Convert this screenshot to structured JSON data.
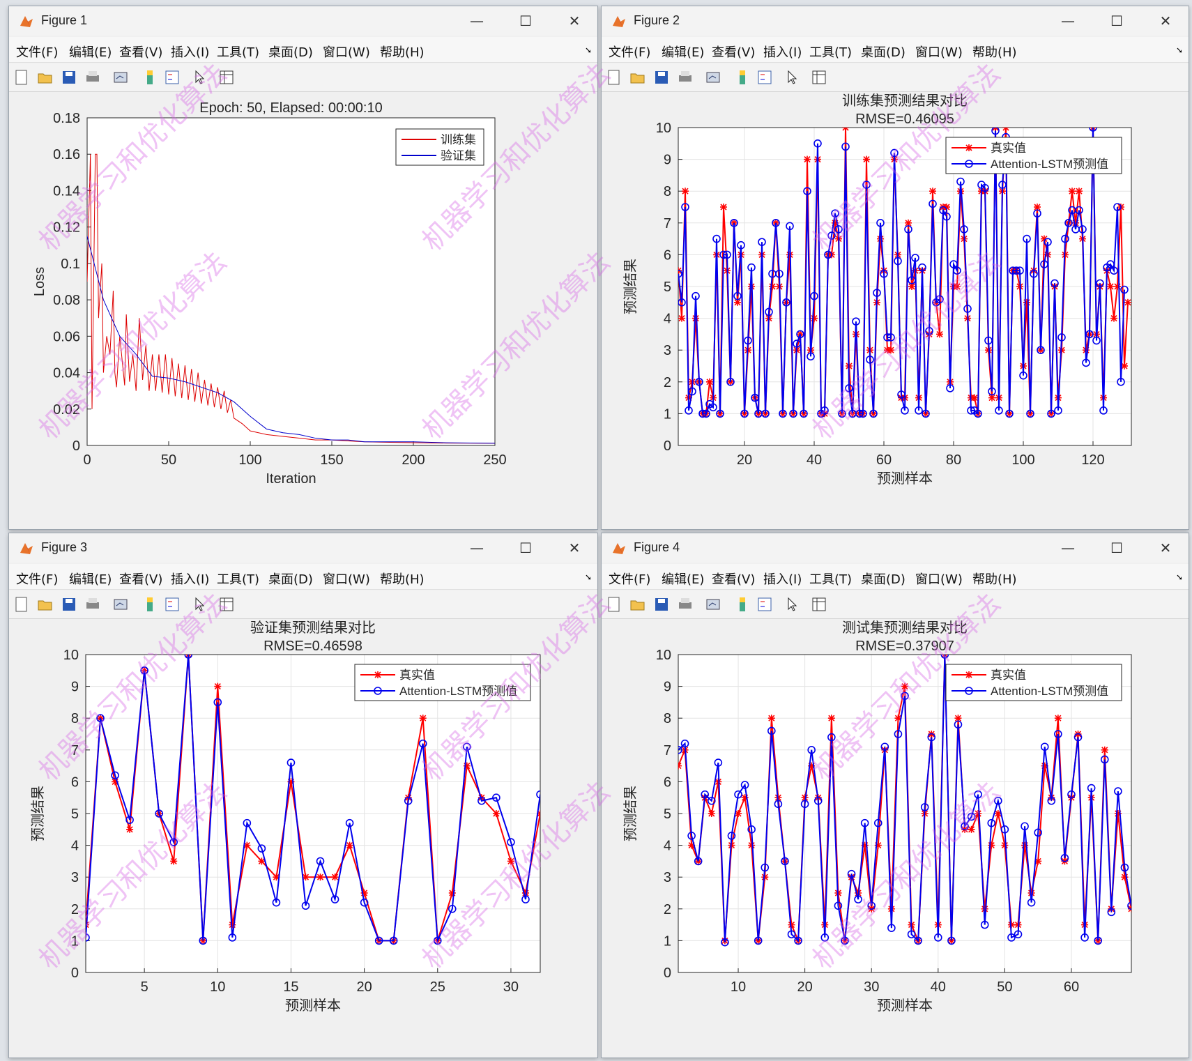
{
  "menu": [
    "文件(F)",
    "编辑(E)",
    "查看(V)",
    "插入(I)",
    "工具(T)",
    "桌面(D)",
    "窗口(W)",
    "帮助(H)"
  ],
  "toolbar_icons": [
    "new-figure-icon",
    "open-file-icon",
    "save-icon",
    "print-icon",
    "link-plot-icon",
    "colorbar-icon",
    "legend-icon",
    "edit-plot-icon",
    "property-inspector-icon"
  ],
  "windows": [
    {
      "title": "Figure 1"
    },
    {
      "title": "Figure 2"
    },
    {
      "title": "Figure 3"
    },
    {
      "title": "Figure 4"
    }
  ],
  "colors": {
    "red": "#ff0000",
    "blue": "#0000ff",
    "grid": "#e3e3e3"
  },
  "watermark": "机器学习和优化算法",
  "chart_data": [
    {
      "type": "line",
      "title": "Epoch: 50, Elapsed: 00:00:10",
      "xlabel": "Iteration",
      "ylabel": "Loss",
      "xlim": [
        0,
        250
      ],
      "ylim": [
        0,
        0.18
      ],
      "xticks": [
        0,
        50,
        100,
        150,
        200,
        250
      ],
      "yticks": [
        0,
        0.02,
        0.04,
        0.06,
        0.08,
        0.1,
        0.12,
        0.14,
        0.16,
        0.18
      ],
      "grid": false,
      "legend": "top-right",
      "series": [
        {
          "name": "训练集",
          "color": "#dd0000",
          "x": [
            0,
            2,
            3,
            5,
            6,
            7,
            9,
            10,
            12,
            14,
            16,
            17,
            18,
            20,
            22,
            23,
            24,
            26,
            28,
            30,
            32,
            34,
            36,
            38,
            40,
            42,
            44,
            46,
            48,
            50,
            52,
            54,
            56,
            58,
            60,
            62,
            64,
            66,
            68,
            70,
            72,
            74,
            76,
            78,
            80,
            82,
            84,
            86,
            88,
            90,
            95,
            100,
            110,
            120,
            130,
            140,
            150,
            160,
            170,
            180,
            200,
            220,
            250
          ],
          "y": [
            0.09,
            0.16,
            0.02,
            0.16,
            0.16,
            0.07,
            0.1,
            0.04,
            0.06,
            0.05,
            0.085,
            0.04,
            0.032,
            0.06,
            0.042,
            0.033,
            0.072,
            0.035,
            0.05,
            0.03,
            0.07,
            0.036,
            0.055,
            0.03,
            0.05,
            0.03,
            0.05,
            0.029,
            0.05,
            0.028,
            0.048,
            0.027,
            0.045,
            0.026,
            0.044,
            0.025,
            0.042,
            0.024,
            0.04,
            0.023,
            0.036,
            0.022,
            0.034,
            0.021,
            0.032,
            0.02,
            0.03,
            0.018,
            0.025,
            0.015,
            0.012,
            0.008,
            0.006,
            0.005,
            0.004,
            0.003,
            0.003,
            0.0025,
            0.002,
            0.0018,
            0.0015,
            0.0013,
            0.0012
          ]
        },
        {
          "name": "验证集",
          "color": "#0000cc",
          "x": [
            0,
            10,
            20,
            30,
            40,
            50,
            60,
            70,
            80,
            90,
            100,
            110,
            120,
            130,
            140,
            150,
            160,
            170,
            180,
            200,
            220,
            250
          ],
          "y": [
            0.115,
            0.08,
            0.06,
            0.05,
            0.038,
            0.037,
            0.035,
            0.032,
            0.029,
            0.024,
            0.016,
            0.009,
            0.007,
            0.006,
            0.004,
            0.003,
            0.003,
            0.002,
            0.002,
            0.002,
            0.0015,
            0.0012
          ]
        }
      ]
    },
    {
      "type": "line",
      "title": "训练集预测结果对比",
      "subtitle": "RMSE=0.46095",
      "xlabel": "预测样本",
      "ylabel": "预测结果",
      "xlim": [
        1,
        131
      ],
      "ylim": [
        0,
        10
      ],
      "xticks": [
        20,
        40,
        60,
        80,
        100,
        120
      ],
      "yticks": [
        0,
        1,
        2,
        3,
        4,
        5,
        6,
        7,
        8,
        9,
        10
      ],
      "grid": true,
      "legend": "top-right",
      "series": [
        {
          "name": "真实值",
          "color": "#ff0000",
          "marker": "star",
          "values": [
            5.5,
            4,
            8,
            1.5,
            2,
            4,
            2,
            1,
            1,
            2,
            1.5,
            6,
            1,
            7.5,
            5.5,
            2,
            7,
            4.5,
            6,
            1,
            3,
            5,
            1.5,
            1,
            6,
            1,
            4,
            5,
            7,
            5,
            1,
            4.5,
            6,
            1,
            3,
            3.5,
            1,
            9,
            3,
            4,
            9,
            1,
            1,
            6,
            6,
            7,
            6.5,
            1,
            10,
            2.5,
            1,
            3.5,
            1,
            1,
            9,
            3,
            1,
            4.5,
            6.5,
            5.5,
            3,
            3,
            9,
            6,
            1.5,
            1.5,
            7,
            5,
            5.5,
            1.5,
            5.5,
            1,
            3.5,
            8,
            4.5,
            3.5,
            7.5,
            7.5,
            2,
            5,
            5,
            8,
            6.5,
            4,
            1.5,
            1.5,
            1,
            8,
            8,
            3,
            1.5,
            10,
            1.5,
            8,
            10,
            1,
            5.5,
            5.5,
            5,
            2.5,
            4.5,
            1,
            5.5,
            7.5,
            3,
            6.5,
            6,
            1,
            5,
            1.5,
            3,
            6,
            7,
            8,
            7,
            8,
            6.5,
            3,
            3.5,
            10,
            3.5,
            5,
            1.5,
            5.5,
            5,
            4,
            5,
            7.5,
            2.5,
            4.5
          ]
        },
        {
          "name": "Attention-LSTM预测值",
          "color": "#0000ee",
          "marker": "circle",
          "values": [
            5.4,
            4.5,
            7.5,
            1.1,
            1.7,
            4.7,
            2,
            1,
            1,
            1.3,
            1.2,
            6.5,
            1,
            6,
            6,
            2,
            7,
            4.7,
            6.3,
            1,
            3.3,
            5.6,
            1.5,
            1,
            6.4,
            1,
            4.2,
            5.4,
            7,
            5.4,
            1,
            4.5,
            6.9,
            1,
            3.2,
            3.5,
            1,
            8,
            2.8,
            4.7,
            9.5,
            1,
            1.1,
            6,
            6.6,
            7.3,
            6.8,
            1,
            9.4,
            1.8,
            1,
            3.9,
            1,
            1,
            8.2,
            2.7,
            1,
            4.8,
            7,
            5.4,
            3.4,
            3.4,
            9.2,
            5.8,
            1.6,
            1.1,
            6.8,
            5.2,
            5.9,
            1.1,
            5.6,
            1,
            3.6,
            7.6,
            4.5,
            4.6,
            7.4,
            7.2,
            1.8,
            5.7,
            5.5,
            8.3,
            6.8,
            4.3,
            1.1,
            1.1,
            1,
            8.2,
            8.1,
            3.3,
            1.7,
            9.9,
            1.1,
            8.2,
            9.7,
            1,
            5.5,
            5.5,
            5.5,
            2.2,
            6.5,
            1,
            5.4,
            7.3,
            3,
            5.7,
            6.4,
            1,
            5.1,
            1.1,
            3.4,
            6.5,
            7,
            7.4,
            6.8,
            7.4,
            6.8,
            2.6,
            3.5,
            10,
            3.3,
            5.1,
            1.1,
            5.6,
            5.7,
            5.5,
            7.5,
            2,
            4.9
          ]
        }
      ]
    },
    {
      "type": "line",
      "title": "验证集预测结果对比",
      "subtitle": "RMSE=0.46598",
      "xlabel": "预测样本",
      "ylabel": "预测结果",
      "xlim": [
        1,
        32
      ],
      "ylim": [
        0,
        10
      ],
      "xticks": [
        5,
        10,
        15,
        20,
        25,
        30
      ],
      "yticks": [
        0,
        1,
        2,
        3,
        4,
        5,
        6,
        7,
        8,
        9,
        10
      ],
      "grid": true,
      "legend": "top-right",
      "series": [
        {
          "name": "真实值",
          "color": "#ff0000",
          "marker": "star",
          "values": [
            1.5,
            8,
            6,
            4.5,
            9.5,
            5,
            3.5,
            10,
            1,
            9,
            1.5,
            4,
            3.5,
            3,
            6,
            3,
            3,
            3,
            4,
            2.5,
            1,
            1,
            5.5,
            8,
            1,
            2.5,
            6.5,
            5.5,
            5,
            3.5,
            2.5,
            5
          ]
        },
        {
          "name": "Attention-LSTM预测值",
          "color": "#0000ee",
          "marker": "circle",
          "values": [
            1.1,
            8,
            6.2,
            4.8,
            9.5,
            5,
            4.1,
            10,
            1,
            8.5,
            1.1,
            4.7,
            3.9,
            2.2,
            6.6,
            2.1,
            3.5,
            2.3,
            4.7,
            2.2,
            1,
            1,
            5.4,
            7.2,
            1,
            2,
            7.1,
            5.4,
            5.5,
            4.1,
            2.3,
            5.6
          ]
        }
      ]
    },
    {
      "type": "line",
      "title": "测试集预测结果对比",
      "subtitle": "RMSE=0.37907",
      "xlabel": "预测样本",
      "ylabel": "预测结果",
      "xlim": [
        1,
        69
      ],
      "ylim": [
        0,
        10
      ],
      "xticks": [
        10,
        20,
        30,
        40,
        50,
        60
      ],
      "yticks": [
        0,
        1,
        2,
        3,
        4,
        5,
        6,
        7,
        8,
        9,
        10
      ],
      "grid": true,
      "legend": "top-right",
      "series": [
        {
          "name": "真实值",
          "color": "#ff0000",
          "marker": "star",
          "values": [
            6.5,
            7,
            4,
            3.5,
            5.5,
            5,
            6,
            1,
            4,
            5,
            5.5,
            4,
            1,
            3,
            8,
            5.5,
            3.5,
            1.5,
            1,
            5.5,
            6.5,
            5.5,
            1.5,
            8,
            2.5,
            1,
            3,
            2.5,
            4,
            2,
            4,
            7,
            2,
            8,
            9,
            1.5,
            1,
            5,
            7.5,
            1.5,
            10,
            1,
            8,
            4.5,
            4.5,
            5,
            2,
            4,
            5,
            4,
            1.5,
            1.5,
            4,
            2.5,
            3.5,
            6.5,
            5.5,
            8,
            3.5,
            5.5,
            7.5,
            1.5,
            5.5,
            1,
            7,
            2,
            5,
            3,
            2
          ]
        },
        {
          "name": "Attention-LSTM预测值",
          "color": "#0000ee",
          "marker": "circle",
          "values": [
            7,
            7.2,
            4.3,
            3.5,
            5.6,
            5.4,
            6.6,
            0.95,
            4.3,
            5.6,
            5.9,
            4.5,
            1,
            3.3,
            7.6,
            5.3,
            3.5,
            1.2,
            1,
            5.3,
            7,
            5.4,
            1.1,
            7.4,
            2.1,
            1,
            3.1,
            2.3,
            4.7,
            2.1,
            4.7,
            7.1,
            1.4,
            7.5,
            8.7,
            1.2,
            1,
            5.2,
            7.4,
            1.1,
            10,
            1,
            7.8,
            4.6,
            4.9,
            5.6,
            1.5,
            4.7,
            5.4,
            4.5,
            1.1,
            1.2,
            4.6,
            2.2,
            4.4,
            7.1,
            5.4,
            7.5,
            3.6,
            5.6,
            7.4,
            1.1,
            5.8,
            1,
            6.7,
            1.9,
            5.7,
            3.3,
            2.1
          ]
        }
      ]
    }
  ]
}
